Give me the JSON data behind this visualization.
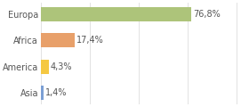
{
  "categories": [
    "Asia",
    "America",
    "Africa",
    "Europa"
  ],
  "values": [
    1.4,
    4.3,
    17.4,
    76.8
  ],
  "labels": [
    "1,4%",
    "4,3%",
    "17,4%",
    "76,8%"
  ],
  "bar_colors": [
    "#7b9fd4",
    "#f5c842",
    "#e8a06a",
    "#adc47a"
  ],
  "background_color": "#ffffff",
  "grid_color": "#dddddd",
  "text_color": "#555555",
  "xlim": [
    0,
    105
  ],
  "bar_height": 0.55,
  "label_fontsize": 7.0,
  "tick_fontsize": 7.0,
  "figsize": [
    2.8,
    1.2
  ],
  "dpi": 100
}
